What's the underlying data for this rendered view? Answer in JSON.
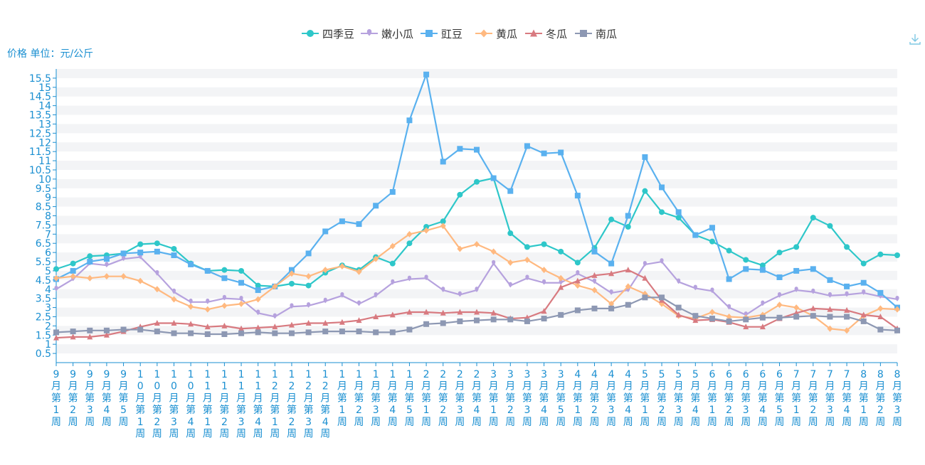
{
  "chart_data": {
    "type": "line",
    "yaxis_label": "价格 单位：元/公斤",
    "ylim": [
      0,
      16
    ],
    "yticks": [
      0.5,
      1,
      1.5,
      2,
      2.5,
      3,
      3.5,
      4,
      4.5,
      5,
      5.5,
      6,
      6.5,
      7,
      7.5,
      8,
      8.5,
      9,
      9.5,
      10,
      10.5,
      11,
      11.5,
      12,
      12.5,
      13,
      13.5,
      14,
      14.5,
      15,
      15.5
    ],
    "categories": [
      "9月第1周",
      "9月第2周",
      "9月第3周",
      "9月第4周",
      "9月第5周",
      "10月第1周",
      "10月第2周",
      "10月第3周",
      "10月第4周",
      "11月第1周",
      "11月第2周",
      "11月第3周",
      "11月第4周",
      "12月第1周",
      "12月第2周",
      "12月第3周",
      "12月第4周",
      "1月第1周",
      "1月第2周",
      "1月第3周",
      "1月第4周",
      "1月第5周",
      "2月第1周",
      "2月第2周",
      "2月第3周",
      "2月第4周",
      "3月第1周",
      "3月第2周",
      "3月第3周",
      "3月第4周",
      "3月第5周",
      "4月第1周",
      "4月第2周",
      "4月第3周",
      "4月第4周",
      "5月第1周",
      "5月第2周",
      "5月第3周",
      "5月第4周",
      "6月第1周",
      "6月第2周",
      "6月第3周",
      "6月第4周",
      "6月第5周",
      "7月第1周",
      "7月第2周",
      "7月第3周",
      "7月第4周",
      "8月第1周",
      "8月第2周",
      "8月第3周"
    ],
    "legend_position": "top-center",
    "grid": "horizontal-bands",
    "series": [
      {
        "name": "四季豆",
        "color": "#2ec7c9",
        "marker": "circle",
        "values": [
          5.1,
          5.4,
          5.8,
          5.85,
          5.95,
          6.45,
          6.5,
          6.2,
          5.4,
          5.0,
          5.05,
          5.0,
          4.2,
          4.15,
          4.3,
          4.2,
          4.9,
          5.3,
          5.05,
          5.75,
          5.4,
          6.5,
          7.4,
          7.7,
          9.15,
          9.85,
          10.05,
          7.05,
          6.3,
          6.45,
          6.05,
          5.45,
          6.25,
          7.8,
          7.4,
          9.35,
          8.2,
          7.9,
          6.95,
          6.6,
          6.1,
          5.6,
          5.3,
          6.0,
          6.3,
          7.9,
          7.45,
          6.3,
          5.4,
          5.9,
          5.85
        ]
      },
      {
        "name": "嫩小瓜",
        "color": "#b6a2de",
        "marker": "pin",
        "values": [
          4.0,
          4.55,
          5.4,
          5.3,
          5.65,
          5.75,
          4.85,
          3.85,
          3.3,
          3.3,
          3.5,
          3.45,
          2.7,
          2.5,
          3.05,
          3.1,
          3.35,
          3.65,
          3.2,
          3.65,
          4.35,
          4.55,
          4.6,
          3.95,
          3.7,
          3.95,
          5.4,
          4.2,
          4.6,
          4.35,
          4.35,
          4.85,
          4.4,
          3.8,
          3.95,
          5.35,
          5.5,
          4.4,
          4.05,
          3.9,
          3.0,
          2.6,
          3.2,
          3.65,
          3.95,
          3.85,
          3.65,
          3.7,
          3.8,
          3.6,
          3.45
        ]
      },
      {
        "name": "豇豆",
        "color": "#5ab1ef",
        "marker": "square",
        "values": [
          4.55,
          5.0,
          5.5,
          5.65,
          5.95,
          6.0,
          6.05,
          5.85,
          5.35,
          5.0,
          4.6,
          4.35,
          3.95,
          4.15,
          5.05,
          5.95,
          7.15,
          7.7,
          7.55,
          8.55,
          9.3,
          13.2,
          15.7,
          10.95,
          11.65,
          11.6,
          10.05,
          9.35,
          11.8,
          11.4,
          11.45,
          9.1,
          6.05,
          5.4,
          8.0,
          11.2,
          9.55,
          8.2,
          6.95,
          7.35,
          4.55,
          5.1,
          5.05,
          4.65,
          5.0,
          5.1,
          4.5,
          4.15,
          4.35,
          3.8,
          3.0
        ]
      },
      {
        "name": "黄瓜",
        "color": "#ffb980",
        "marker": "diamond",
        "values": [
          4.6,
          4.7,
          4.6,
          4.7,
          4.7,
          4.45,
          4.0,
          3.45,
          3.05,
          2.9,
          3.1,
          3.2,
          3.45,
          4.15,
          4.85,
          4.7,
          5.05,
          5.25,
          4.95,
          5.65,
          6.35,
          7.0,
          7.2,
          7.45,
          6.2,
          6.45,
          6.05,
          5.45,
          5.6,
          5.05,
          4.6,
          4.2,
          3.95,
          3.2,
          4.15,
          3.75,
          3.2,
          2.55,
          2.4,
          2.75,
          2.5,
          2.45,
          2.6,
          3.15,
          3.0,
          2.55,
          1.85,
          1.75,
          2.55,
          2.95,
          2.9
        ]
      },
      {
        "name": "冬瓜",
        "color": "#d87a80",
        "marker": "triangle",
        "values": [
          1.35,
          1.4,
          1.4,
          1.5,
          1.7,
          1.95,
          2.15,
          2.15,
          2.1,
          1.95,
          2.0,
          1.85,
          1.9,
          1.95,
          2.05,
          2.15,
          2.15,
          2.2,
          2.3,
          2.5,
          2.6,
          2.75,
          2.75,
          2.7,
          2.75,
          2.75,
          2.7,
          2.4,
          2.45,
          2.8,
          4.1,
          4.45,
          4.75,
          4.85,
          5.05,
          4.6,
          3.4,
          2.6,
          2.3,
          2.35,
          2.2,
          1.95,
          1.95,
          2.4,
          2.7,
          2.95,
          2.9,
          2.85,
          2.6,
          2.5,
          1.85
        ]
      },
      {
        "name": "南瓜",
        "color": "#8d98b3",
        "marker": "square",
        "values": [
          1.65,
          1.7,
          1.75,
          1.75,
          1.8,
          1.8,
          1.7,
          1.6,
          1.6,
          1.55,
          1.55,
          1.6,
          1.65,
          1.6,
          1.6,
          1.65,
          1.7,
          1.7,
          1.7,
          1.65,
          1.65,
          1.8,
          2.1,
          2.15,
          2.25,
          2.3,
          2.35,
          2.35,
          2.25,
          2.4,
          2.6,
          2.85,
          2.95,
          2.95,
          3.15,
          3.55,
          3.55,
          3.0,
          2.55,
          2.4,
          2.25,
          2.35,
          2.45,
          2.45,
          2.5,
          2.55,
          2.5,
          2.5,
          2.25,
          1.8,
          1.75
        ]
      }
    ]
  },
  "toolbar": {
    "download_icon": "download-icon"
  }
}
